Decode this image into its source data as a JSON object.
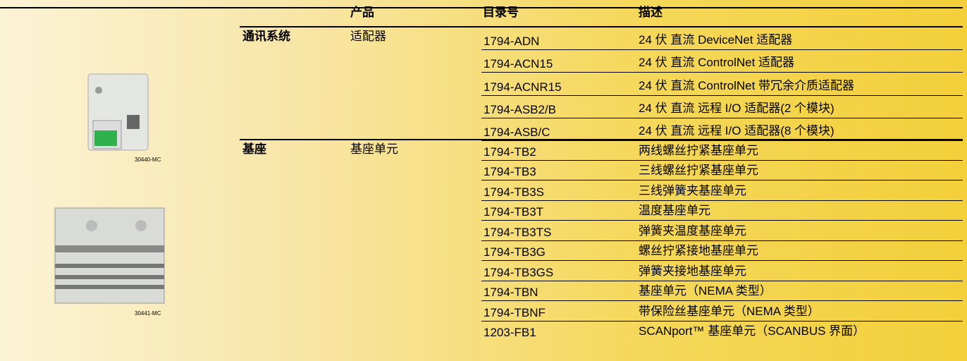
{
  "header": {
    "columns": [
      "产品",
      "目录号",
      "描述"
    ]
  },
  "sections": [
    {
      "category": "通讯系统",
      "product": "适配器",
      "rows": [
        [
          "1794-ADN",
          "24 伏 直流 DeviceNet 适配器"
        ],
        [
          "1794-ACN15",
          "24 伏 直流 ControlNet 适配器"
        ],
        [
          "1794-ACNR15",
          "24 伏 直流 ControlNet 带冗余介质适配器"
        ],
        [
          "1794-ASB2/B",
          "24 伏 直流 远程 I/O 适配器(2 个模块)"
        ],
        [
          "1794-ASB/C",
          "24 伏 直流 远程 I/O 适配器(8 个模块)"
        ]
      ]
    },
    {
      "category": "基座",
      "product": "基座单元",
      "rows": [
        [
          "1794-TB2",
          "两线螺丝拧紧基座单元"
        ],
        [
          "1794-TB3",
          "三线螺丝拧紧基座单元"
        ],
        [
          "1794-TB3S",
          "三线弹簧夹基座单元"
        ],
        [
          "1794-TB3T",
          "温度基座单元"
        ],
        [
          "1794-TB3TS",
          "弹簧夹温度基座单元"
        ],
        [
          "1794-TB3G",
          "螺丝拧紧接地基座单元"
        ],
        [
          "1794-TB3GS",
          "弹簧夹接地基座单元"
        ],
        [
          "1794-TBN",
          "基座单元（NEMA 类型）"
        ],
        [
          "1794-TBNF",
          "带保险丝基座单元（NEMA 类型）"
        ],
        [
          "1203-FB1",
          "SCANport™ 基座单元（SCANBUS 界面）"
        ]
      ]
    }
  ],
  "figures": [
    {
      "caption": "30440-MC"
    },
    {
      "caption": "30441-MC"
    }
  ]
}
